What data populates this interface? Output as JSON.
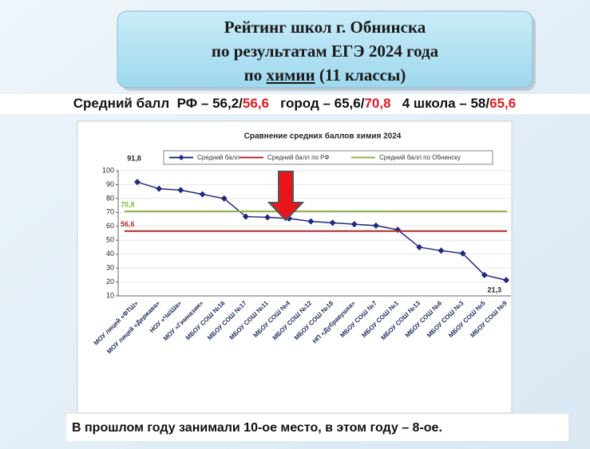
{
  "header": {
    "title_lines": [
      "Рейтинг школ  г. Обнинска",
      "по результатам  ЕГЭ 2024 года"
    ],
    "title_last": {
      "before": "по ",
      "underlined": "химии",
      "after": " (11 классы)"
    }
  },
  "summary": [
    {
      "text": "Средний балл  РФ – 56,2/"
    },
    {
      "text": "56,6",
      "highlight": true
    },
    {
      "text": "   город – 65,6/"
    },
    {
      "text": "70,8",
      "highlight": true
    },
    {
      "text": "   4 школа – 58/"
    },
    {
      "text": "65,6",
      "highlight": true
    }
  ],
  "footer": "В прошлом году занимали 10-ое место, в этом году – 8-ое.",
  "chart_data": {
    "type": "line",
    "title": "Сравнение средних баллов химия 2024",
    "categories": [
      "МОУ лицей «ФТШ»",
      "МОУ лицей «Держава»",
      "НОУ «Ча\\Ша»",
      "МОУ «Гимназия»",
      "МБОУ СОШ №16",
      "МБОУ СОШ №17",
      "МБОУ СОШ №11",
      "МБОУ СОШ №4",
      "МБОУ СОШ №12",
      "МБОУ СОШ №18",
      "НП «Дубравушка»",
      "МБОУ СОШ №7",
      "МБОУ СОШ №1",
      "МБОУ СОШ №13",
      "МБОУ СОШ №6",
      "МБОУ СОШ №3",
      "МБОУ СОШ №5",
      "МБОУ СОШ №9"
    ],
    "series": [
      {
        "name": "Средний балл",
        "color": "#1f2a80",
        "values": [
          91.8,
          87,
          86,
          83,
          80,
          67,
          66.5,
          65.6,
          63.5,
          62.5,
          61.5,
          60.5,
          57.5,
          45,
          42.5,
          40.5,
          25,
          21.3
        ],
        "value_labels": [
          "91,8",
          null,
          null,
          null,
          null,
          null,
          null,
          null,
          null,
          null,
          null,
          null,
          null,
          null,
          null,
          null,
          null,
          "21,3"
        ]
      },
      {
        "name": "Средний балл по РФ",
        "color": "#b02a2a",
        "value": 56.6,
        "value_label": "56,6"
      },
      {
        "name": "Средний балл по Обнинску",
        "color": "#8db548",
        "value": 70.8,
        "value_label": "70,8"
      }
    ],
    "ylim": [
      10,
      100
    ],
    "yticks": [
      10,
      20,
      30,
      40,
      50,
      60,
      70,
      80,
      90,
      100
    ],
    "grid": true
  }
}
